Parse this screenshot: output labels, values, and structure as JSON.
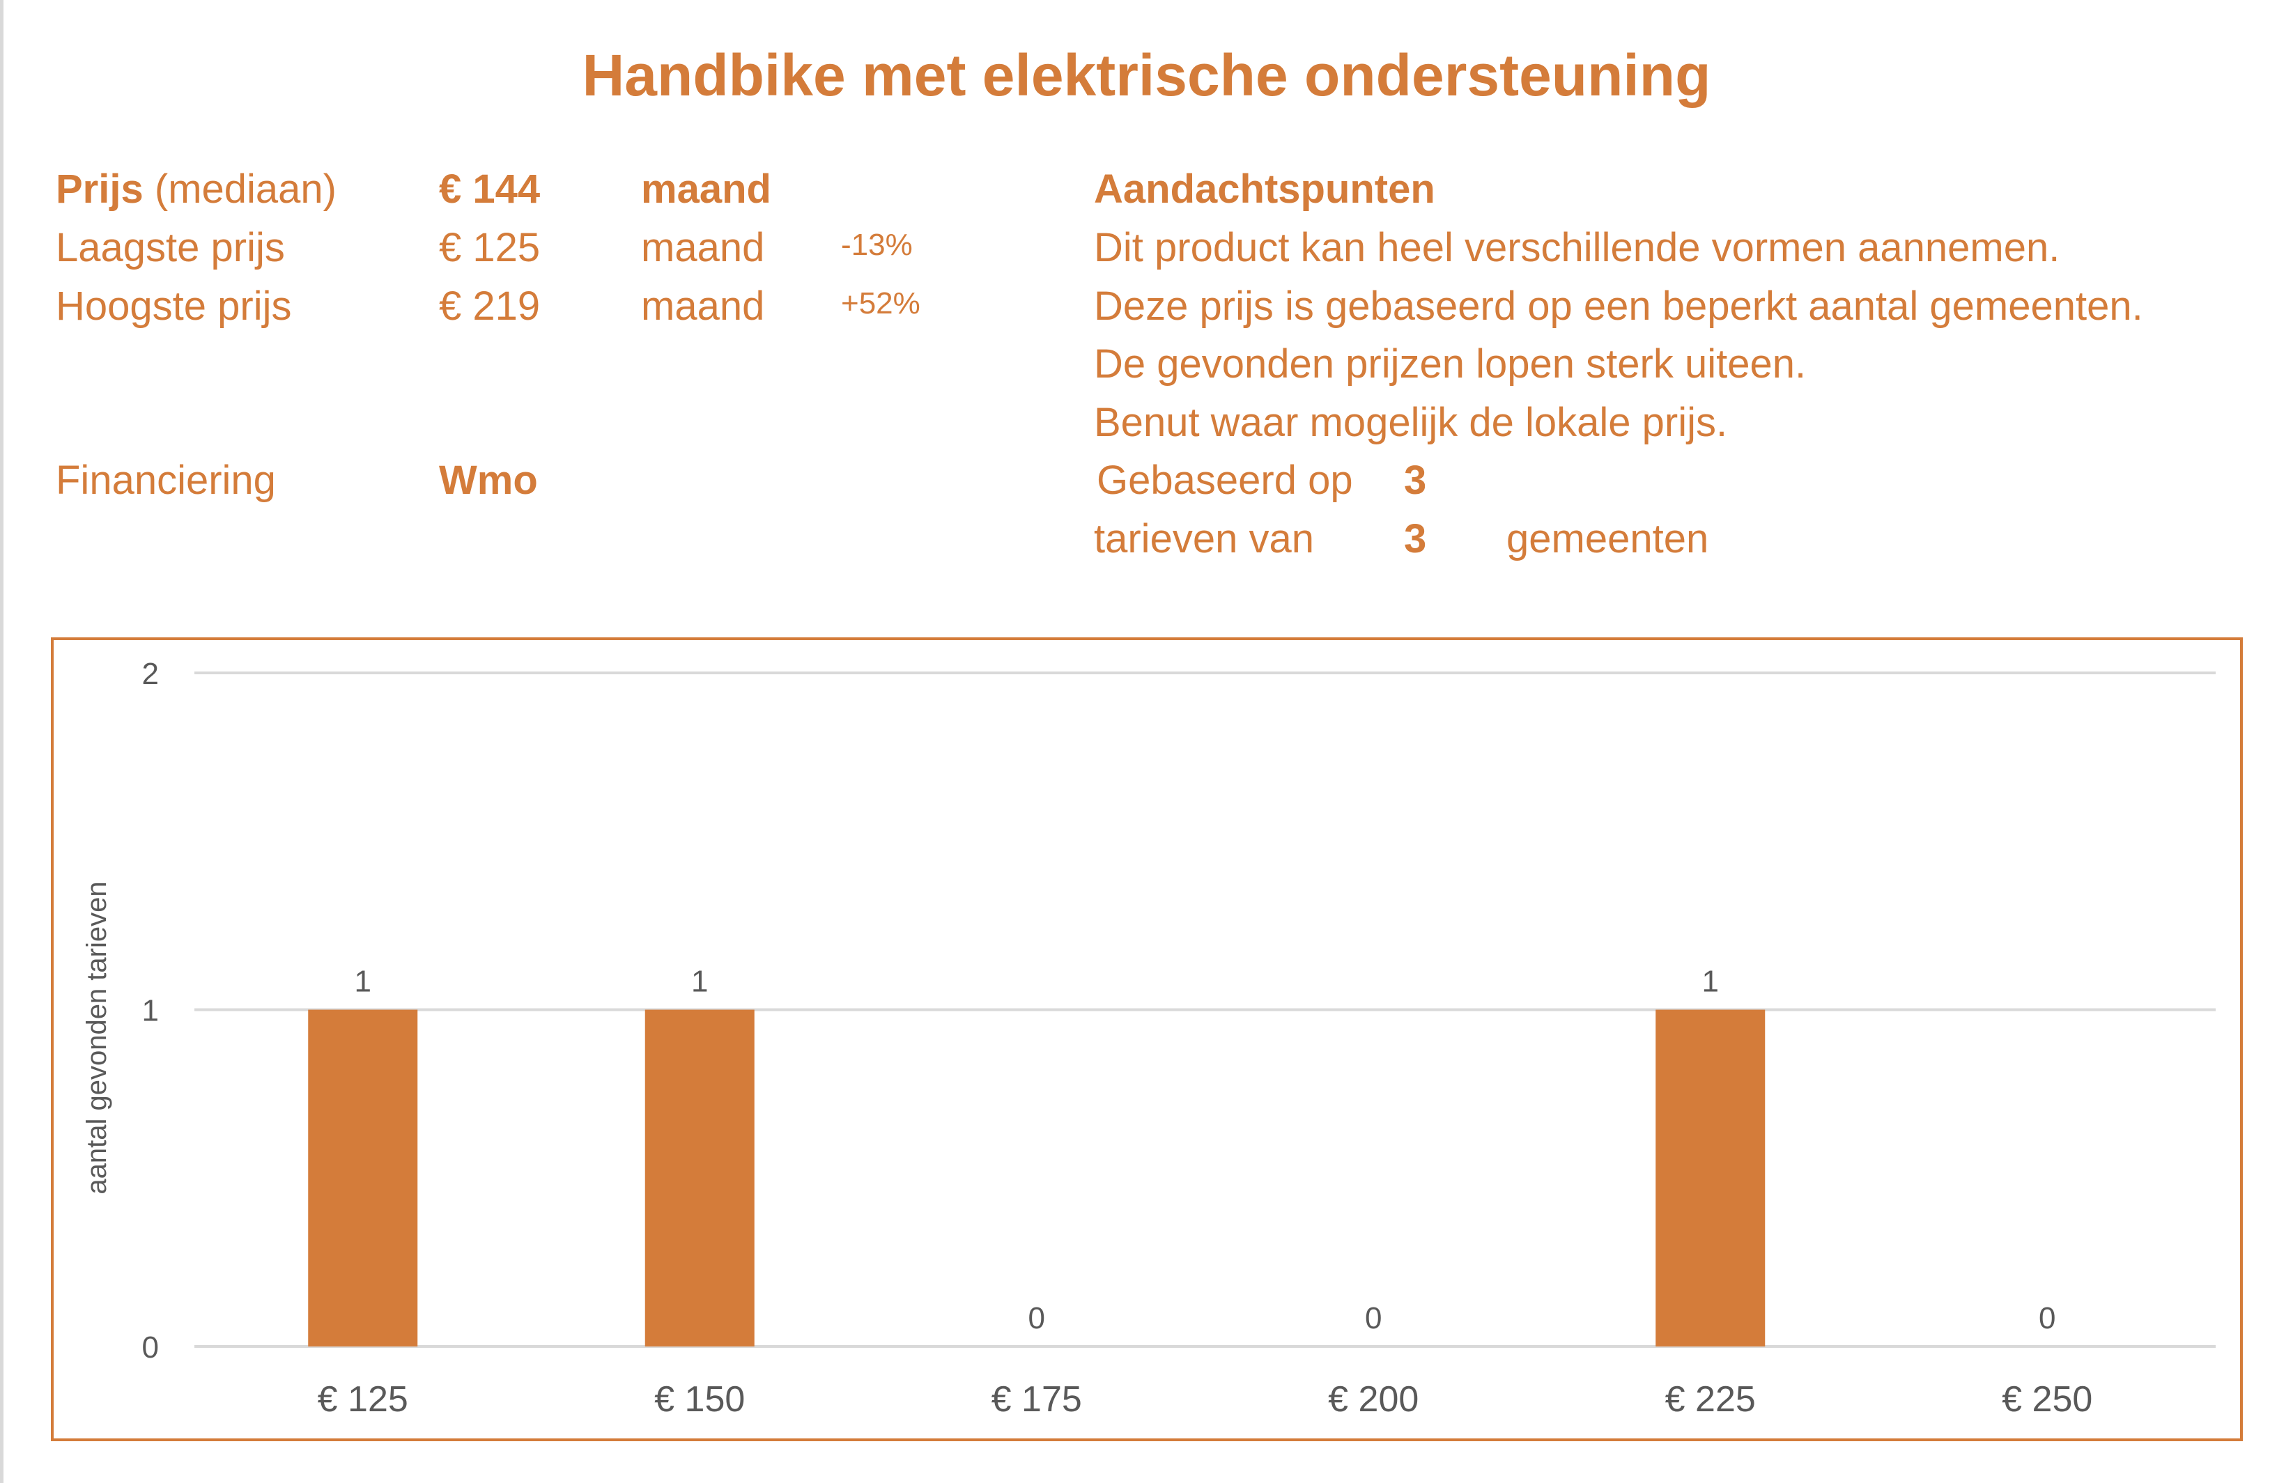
{
  "title": "Handbike met elektrische ondersteuning",
  "prices": {
    "median_label_bold": "Prijs",
    "median_label_rest": "(mediaan)",
    "median_value": "€ 144",
    "median_unit": "maand",
    "low_label": "Laagste prijs",
    "low_value": "€ 125",
    "low_unit": "maand",
    "low_pct": "-13%",
    "high_label": "Hoogste prijs",
    "high_value": "€ 219",
    "high_unit": "maand",
    "high_pct": "+52%",
    "financing_label": "Financiering",
    "financing_value": "Wmo"
  },
  "notes": {
    "heading": "Aandachtspunten",
    "lines": [
      "Dit product kan heel verschillende vormen aannemen.",
      "Deze prijs is gebaseerd op een beperkt aantal gemeenten.",
      "De gevonden prijzen lopen sterk uiteen.",
      "Benut waar mogelijk de lokale prijs."
    ],
    "based_on_label": "Gebaseerd op",
    "based_on_count": "3",
    "tariffs_label": "tarieven van",
    "municipalities_count": "3",
    "municipalities_label": "gemeenten"
  },
  "colors": {
    "accent": "#D47C3A",
    "axis_text": "#595959",
    "grid": "#d9d9d9"
  },
  "chart_data": {
    "type": "bar",
    "title": "",
    "xlabel": "",
    "ylabel": "aantal gevonden tarieven",
    "categories": [
      "€ 125",
      "€ 150",
      "€ 175",
      "€ 200",
      "€ 225",
      "€ 250"
    ],
    "values": [
      1,
      1,
      0,
      0,
      1,
      0
    ],
    "ylim": [
      0,
      2
    ],
    "yticks": [
      "0",
      "1",
      "2"
    ],
    "grid": true,
    "data_labels": true
  }
}
